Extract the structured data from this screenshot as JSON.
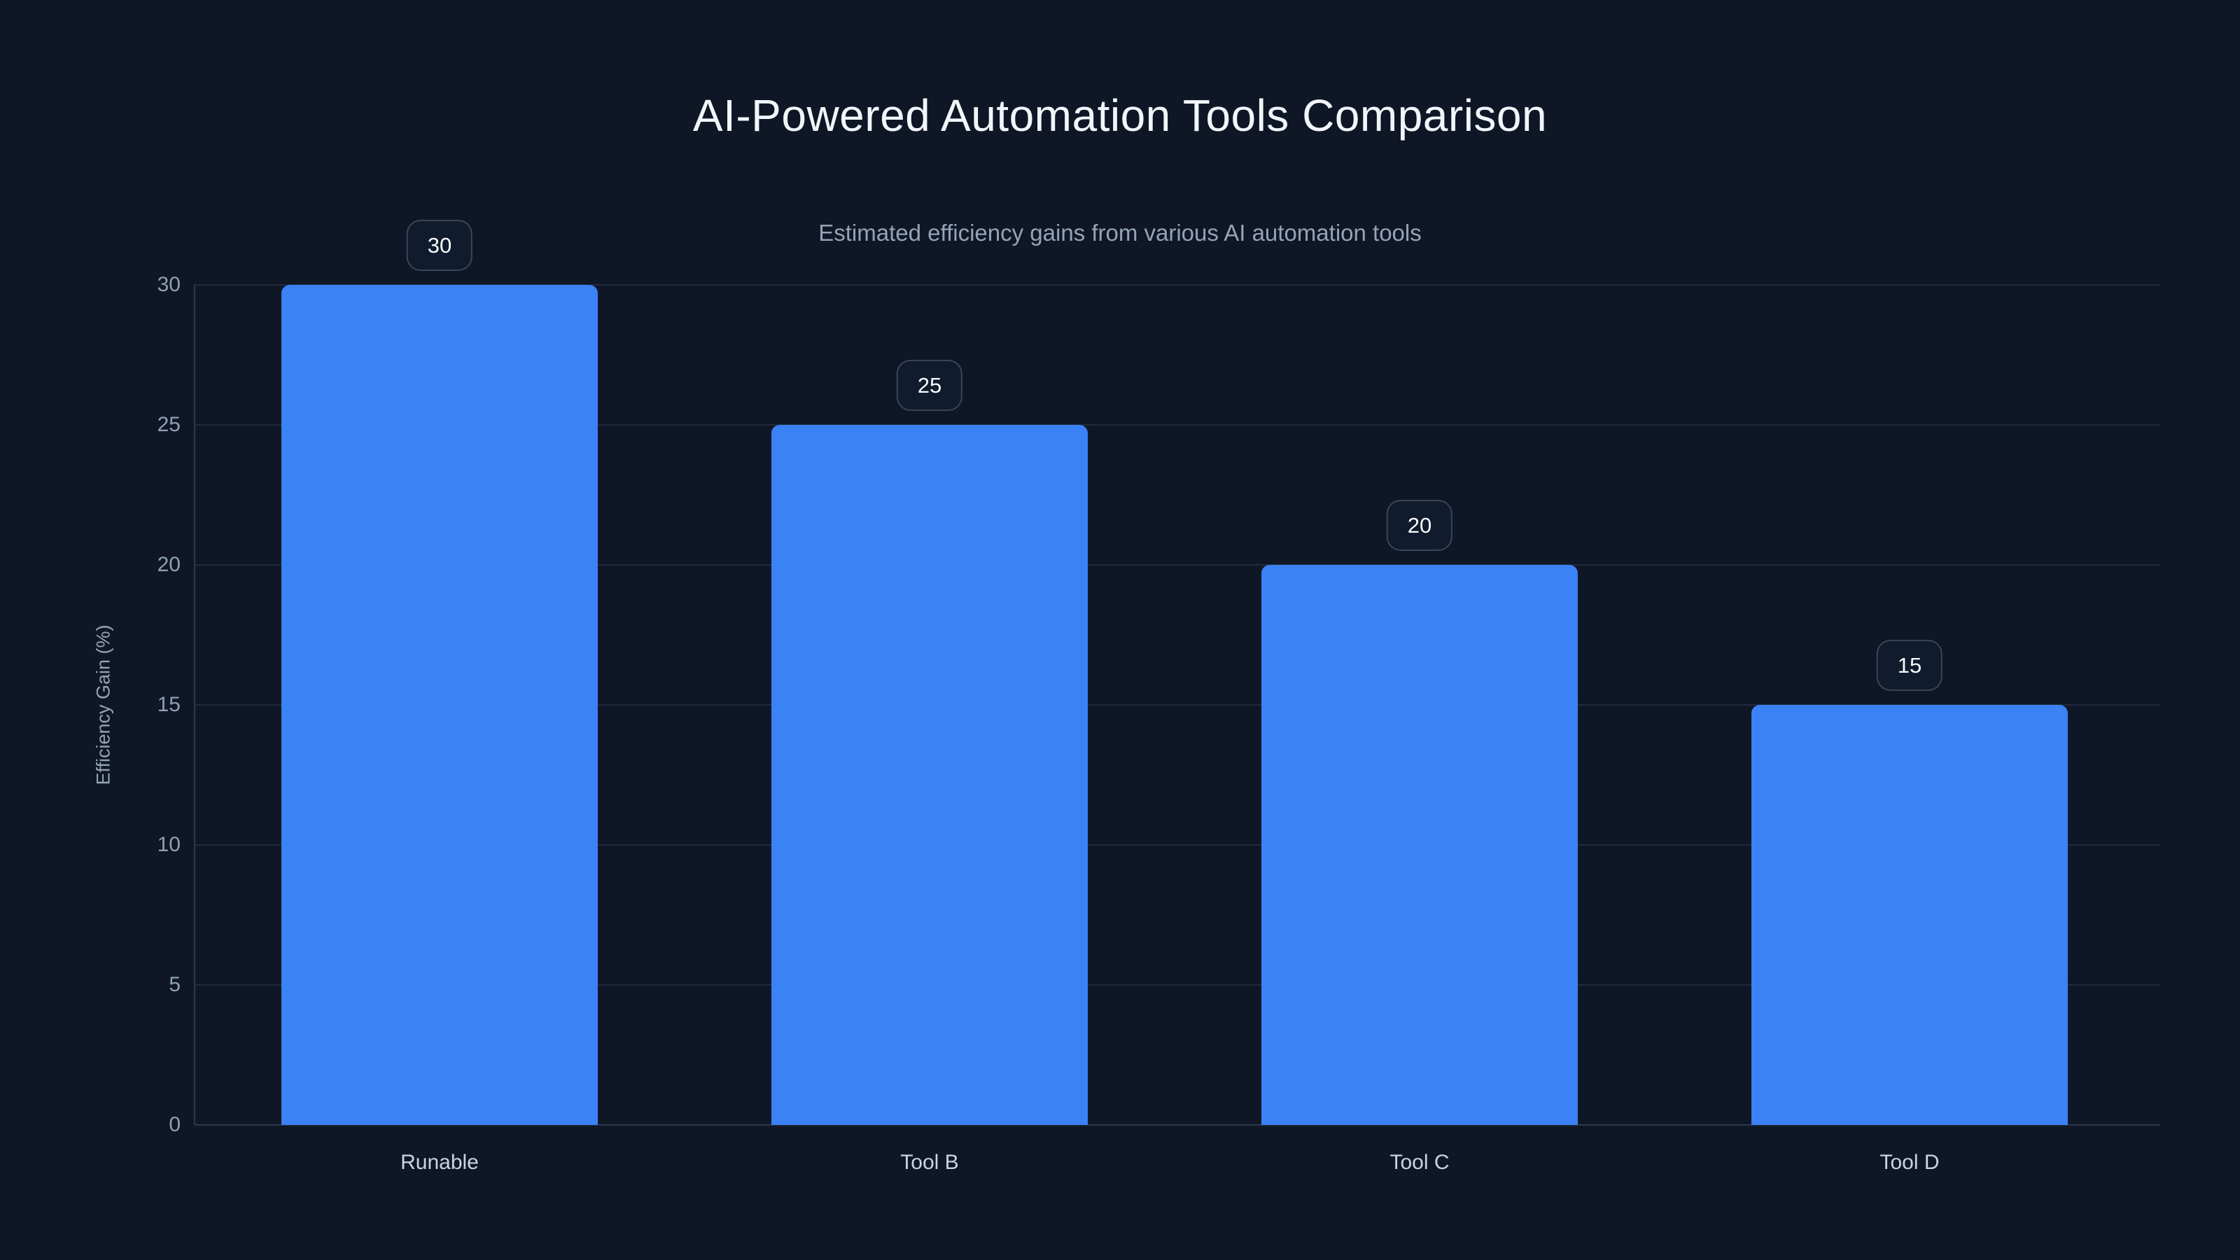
{
  "page": {
    "title": "AI-Powered Automation Tools Comparison",
    "subtitle": "Estimated efficiency gains from various AI automation tools"
  },
  "chart_data": {
    "type": "bar",
    "title": "AI-Powered Automation Tools Comparison",
    "subtitle": "Estimated efficiency gains from various AI automation tools",
    "categories": [
      "Runable",
      "Tool B",
      "Tool C",
      "Tool D"
    ],
    "values": [
      30,
      25,
      20,
      15
    ],
    "bar_labels": [
      "30",
      "25",
      "20",
      "15"
    ],
    "xlabel": "",
    "ylabel": "Efficiency Gain (%)",
    "ylim": [
      0,
      30
    ],
    "yticks": [
      0,
      5,
      10,
      15,
      20,
      25,
      30
    ],
    "grid": true,
    "legend": false,
    "orientation": "vertical"
  },
  "colors": {
    "background": "#0f1726",
    "bar": "#3b82f6",
    "grid_line": "#212b3d",
    "axis_line": "#2c3850",
    "title_text": "#f2f6fa",
    "subtitle_text": "#94a3b8",
    "ytick_text": "#8fa0b6",
    "xtick_text": "#cbd5e1",
    "badge_text": "#f8fafc",
    "badge_border": "#3a4559",
    "badge_background": "#101b2d"
  }
}
